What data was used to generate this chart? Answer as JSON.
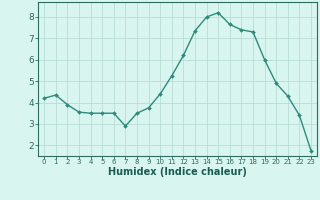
{
  "x": [
    0,
    1,
    2,
    3,
    4,
    5,
    6,
    7,
    8,
    9,
    10,
    11,
    12,
    13,
    14,
    15,
    16,
    17,
    18,
    19,
    20,
    21,
    22,
    23
  ],
  "y": [
    4.2,
    4.35,
    3.9,
    3.55,
    3.5,
    3.5,
    3.5,
    2.9,
    3.5,
    3.75,
    4.4,
    5.25,
    6.2,
    7.35,
    8.0,
    8.2,
    7.65,
    7.4,
    7.3,
    6.0,
    4.9,
    4.3,
    3.4,
    1.75
  ],
  "line_color": "#2e8b7a",
  "marker": "D",
  "marker_size": 2.0,
  "line_width": 1.0,
  "xlabel": "Humidex (Indice chaleur)",
  "xlabel_fontsize": 7,
  "background_color": "#d8f5f0",
  "grid_color": "#b8ddd6",
  "tick_color": "#2e6b60",
  "axis_label_color": "#1a5c52",
  "spine_color": "#2e6b60",
  "ylim": [
    1.5,
    8.7
  ],
  "xlim": [
    -0.5,
    23.5
  ],
  "yticks": [
    2,
    3,
    4,
    5,
    6,
    7,
    8
  ],
  "xticks": [
    0,
    1,
    2,
    3,
    4,
    5,
    6,
    7,
    8,
    9,
    10,
    11,
    12,
    13,
    14,
    15,
    16,
    17,
    18,
    19,
    20,
    21,
    22,
    23
  ],
  "ytick_fontsize": 6.5,
  "xtick_fontsize": 5.0
}
